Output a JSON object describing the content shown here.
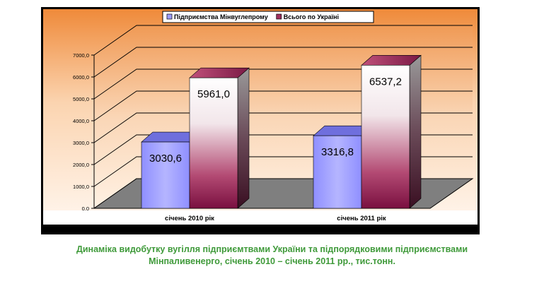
{
  "chart_data": {
    "type": "bar",
    "categories": [
      "січень 2010 рік",
      "січень 2011 рік"
    ],
    "series": [
      {
        "name": "Підприємства Мінвуглепрому",
        "values": [
          3030.6,
          3316.8
        ],
        "labels": [
          "3030,6",
          "3316,8"
        ],
        "color": "#9d9dff"
      },
      {
        "name": "Всього по Україні",
        "values": [
          5961.0,
          6537.2
        ],
        "labels": [
          "5961,0",
          "6537,2"
        ],
        "color": "#ffffff"
      }
    ],
    "y_ticks": [
      "0,0",
      "1000,0",
      "2000,0",
      "3000,0",
      "4000,0",
      "5000,0",
      "6000,0",
      "7000,0"
    ],
    "ylim": [
      0,
      7000
    ],
    "grid": true,
    "legend_position": "top-center",
    "three_d": true,
    "colors": {
      "background": "#f8c9a0",
      "floor": "#7a7a7a",
      "bar_series1": "#9d9dff",
      "bar_series2_top": "#ffffff",
      "bar_series2_bottom": "#8b1a4a",
      "caption": "#3f9a3a"
    }
  },
  "caption": {
    "line1": "Динаміка видобутку вугілля підприємтвами України та підпорядковими підприємствами",
    "line2": "Мінпаливенерго, січень 2010 – січень 2011 рр., тис.тонн."
  }
}
